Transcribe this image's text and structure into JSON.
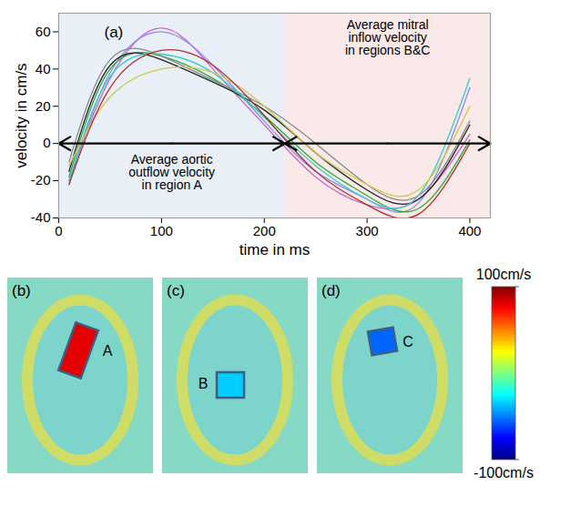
{
  "chart_data": [
    {
      "type": "line",
      "label": "(a)",
      "x_label": "time in ms",
      "y_label": "velocity in cm/s",
      "x": [
        10,
        50,
        100,
        150,
        200,
        250,
        300,
        350,
        400
      ],
      "series": [
        {
          "color": "#cc66cc",
          "values": [
            -20,
            35,
            62,
            40,
            10,
            -18,
            -33,
            -30,
            5
          ]
        },
        {
          "color": "#8c8cf0",
          "values": [
            -22,
            38,
            60,
            42,
            12,
            -15,
            -30,
            -32,
            30
          ]
        },
        {
          "color": "#33aa33",
          "values": [
            -18,
            40,
            47,
            35,
            15,
            -10,
            -28,
            -35,
            2
          ]
        },
        {
          "color": "#222222",
          "values": [
            -15,
            42,
            45,
            33,
            18,
            -5,
            -25,
            -30,
            10
          ]
        },
        {
          "color": "#888888",
          "values": [
            -10,
            45,
            47,
            34,
            20,
            0,
            -22,
            -28,
            12
          ]
        },
        {
          "color": "#33cccc",
          "values": [
            -20,
            36,
            48,
            38,
            14,
            -12,
            -30,
            -28,
            35
          ]
        },
        {
          "color": "#cccc44",
          "values": [
            -12,
            25,
            40,
            38,
            20,
            -5,
            -22,
            -25,
            20
          ]
        },
        {
          "color": "#b03030",
          "values": [
            -22,
            30,
            50,
            42,
            15,
            -15,
            -33,
            -38,
            0
          ]
        }
      ],
      "regions": [
        {
          "x": [
            0,
            220
          ],
          "color": "#e8eff7",
          "text": "Average aortic\noutflow velocity\nin region A"
        },
        {
          "x": [
            220,
            420
          ],
          "color": "#f9e9e9",
          "text": "Average mitral\ninflow velocity\nin regions B&C"
        }
      ],
      "xlim": [
        0,
        420
      ],
      "xticks": [
        0,
        100,
        200,
        300,
        400
      ],
      "ylim": [
        -40,
        70
      ],
      "yticks": [
        -40,
        -20,
        0,
        20,
        40,
        60
      ]
    },
    {
      "type": "image",
      "panels": [
        {
          "label": "(b)",
          "region": "A",
          "region_value": 80
        },
        {
          "label": "(c)",
          "region": "B",
          "region_value": -35
        },
        {
          "label": "(d)",
          "region": "C",
          "region_value": -55
        }
      ],
      "colorbar": {
        "range": [
          -100,
          100
        ],
        "ticks": [
          {
            "value": 100,
            "label": "100cm/s"
          },
          {
            "value": -100,
            "label": "-100cm/s"
          }
        ],
        "colors": [
          "#00007f",
          "#0000ff",
          "#007fff",
          "#00ffff",
          "#7fff7f",
          "#ffff00",
          "#ff7f00",
          "#ff0000",
          "#7f0000"
        ]
      }
    }
  ]
}
